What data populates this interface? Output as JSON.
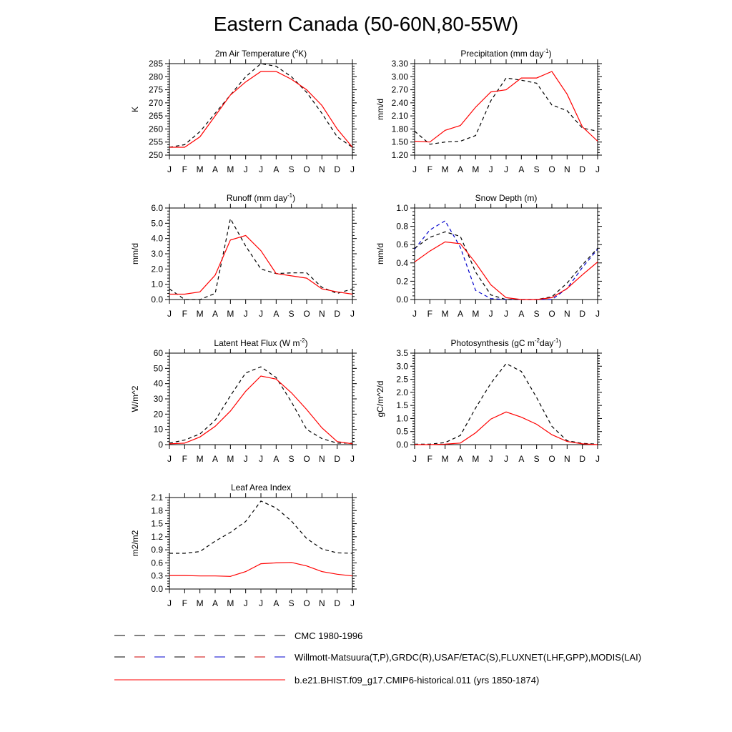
{
  "title": "Eastern Canada (50-60N,80-55W)",
  "months": [
    "J",
    "F",
    "M",
    "A",
    "M",
    "J",
    "J",
    "A",
    "S",
    "O",
    "N",
    "D",
    "J"
  ],
  "legend": [
    {
      "label": "CMC 1980-1996",
      "style": "dash",
      "colors": [
        "#000000"
      ]
    },
    {
      "label": "Willmott-Matsuura(T,P),GRDC(R),USAF/ETAC(S),FLUXNET(LHF,GPP),MODIS(LAI)",
      "style": "dash",
      "colors": [
        "#000000",
        "#cc0000",
        "#0000cc"
      ]
    },
    {
      "label": "b.e21.BHIST.f09_g17.CMIP6-historical.011 (yrs 1850-1874)",
      "style": "solid",
      "colors": [
        "#ff0000"
      ]
    }
  ],
  "chart_data": [
    {
      "type": "line",
      "title": "2m Air Temperature (°K)",
      "title_parts": [
        [
          "2m Air Temperature (",
          "n"
        ],
        [
          "o",
          "sup"
        ],
        [
          "K)",
          "n"
        ]
      ],
      "ylabel": "K",
      "ylim": [
        250,
        285
      ],
      "yticks": [
        250,
        255,
        260,
        265,
        270,
        275,
        280,
        285
      ],
      "ytick_labels": [
        "250",
        "255",
        "260",
        "265",
        "270",
        "275",
        "280",
        "285"
      ],
      "grid": false,
      "series": [
        {
          "color": "#000000",
          "dash": true,
          "values": [
            253,
            254,
            259,
            266,
            273,
            280,
            285,
            284,
            280,
            274,
            266,
            257,
            253
          ]
        },
        {
          "color": "#ff0000",
          "dash": false,
          "values": [
            253,
            253,
            257,
            265,
            273,
            278,
            282,
            282,
            279,
            275,
            269,
            260,
            253
          ]
        }
      ]
    },
    {
      "type": "line",
      "title": "Precipitation (mm day-1)",
      "title_parts": [
        [
          "Precipitation (mm day",
          "n"
        ],
        [
          "-1",
          "sup"
        ],
        [
          ")",
          "n"
        ]
      ],
      "ylabel": "mm/d",
      "ylim": [
        1.2,
        3.3
      ],
      "yticks": [
        1.2,
        1.5,
        1.8,
        2.1,
        2.4,
        2.7,
        3.0,
        3.3
      ],
      "ytick_labels": [
        "1.20",
        "1.50",
        "1.80",
        "2.10",
        "2.40",
        "2.70",
        "3.00",
        "3.30"
      ],
      "grid": false,
      "series": [
        {
          "color": "#000000",
          "dash": true,
          "values": [
            1.75,
            1.45,
            1.5,
            1.52,
            1.65,
            2.45,
            2.97,
            2.92,
            2.85,
            2.35,
            2.22,
            1.82,
            1.75
          ]
        },
        {
          "color": "#ff0000",
          "dash": false,
          "values": [
            1.52,
            1.5,
            1.77,
            1.88,
            2.3,
            2.65,
            2.7,
            2.97,
            2.97,
            3.12,
            2.6,
            1.85,
            1.52
          ]
        }
      ]
    },
    {
      "type": "line",
      "title": "Runoff (mm day-1)",
      "title_parts": [
        [
          "Runoff (mm day",
          "n"
        ],
        [
          "-1",
          "sup"
        ],
        [
          ")",
          "n"
        ]
      ],
      "ylabel": "mm/d",
      "ylim": [
        0,
        6
      ],
      "yticks": [
        0,
        1,
        2,
        3,
        4,
        5,
        6
      ],
      "ytick_labels": [
        "0.0",
        "1.0",
        "2.0",
        "3.0",
        "4.0",
        "5.0",
        "6.0"
      ],
      "grid": false,
      "series": [
        {
          "color": "#000000",
          "dash": true,
          "values": [
            0.7,
            0.0,
            0.0,
            0.4,
            5.3,
            3.5,
            2.0,
            1.7,
            1.75,
            1.75,
            0.8,
            0.4,
            0.7
          ]
        },
        {
          "color": "#ff0000",
          "dash": false,
          "values": [
            0.35,
            0.35,
            0.5,
            1.6,
            3.9,
            4.2,
            3.2,
            1.7,
            1.55,
            1.4,
            0.7,
            0.5,
            0.35
          ]
        }
      ]
    },
    {
      "type": "line",
      "title": "Snow Depth (m)",
      "title_parts": [
        [
          "Snow Depth (m)",
          "n"
        ]
      ],
      "ylabel": "mm/d",
      "ylim": [
        0,
        1
      ],
      "yticks": [
        0,
        0.2,
        0.4,
        0.6,
        0.8,
        1.0
      ],
      "ytick_labels": [
        "0.0",
        "0.2",
        "0.4",
        "0.6",
        "0.8",
        "1.0"
      ],
      "grid": false,
      "series": [
        {
          "color": "#0000cc",
          "dash": true,
          "values": [
            0.55,
            0.76,
            0.86,
            0.57,
            0.1,
            0.01,
            0.0,
            0.0,
            0.0,
            0.0,
            0.12,
            0.35,
            0.55
          ]
        },
        {
          "color": "#000000",
          "dash": true,
          "values": [
            0.56,
            0.68,
            0.74,
            0.69,
            0.3,
            0.05,
            0.0,
            0.0,
            0.0,
            0.03,
            0.18,
            0.38,
            0.56
          ]
        },
        {
          "color": "#ff0000",
          "dash": false,
          "values": [
            0.41,
            0.53,
            0.63,
            0.61,
            0.4,
            0.16,
            0.02,
            0.0,
            0.0,
            0.02,
            0.12,
            0.27,
            0.41
          ]
        }
      ]
    },
    {
      "type": "line",
      "title": "Latent Heat Flux (W m-2)",
      "title_parts": [
        [
          "Latent Heat Flux (W m",
          "n"
        ],
        [
          "-2",
          "sup"
        ],
        [
          ")",
          "n"
        ]
      ],
      "ylabel": "W/m^2",
      "ylim": [
        0,
        60
      ],
      "yticks": [
        0,
        10,
        20,
        30,
        40,
        50,
        60
      ],
      "ytick_labels": [
        "0",
        "10",
        "20",
        "30",
        "40",
        "50",
        "60"
      ],
      "grid": false,
      "series": [
        {
          "color": "#000000",
          "dash": true,
          "values": [
            1,
            3,
            7,
            16,
            32,
            47,
            51,
            44,
            28,
            10,
            4,
            1,
            1
          ]
        },
        {
          "color": "#ff0000",
          "dash": false,
          "values": [
            0.5,
            1,
            5,
            12,
            22,
            35,
            45,
            43,
            34,
            23,
            11,
            2,
            0.5
          ]
        }
      ]
    },
    {
      "type": "line",
      "title": "Photosynthesis (gC m-2day-1)",
      "title_parts": [
        [
          "Photosynthesis (gC m",
          "n"
        ],
        [
          "-2",
          "sup"
        ],
        [
          "day",
          "n"
        ],
        [
          "-1",
          "sup"
        ],
        [
          ")",
          "n"
        ]
      ],
      "ylabel": "gC/m^2/d",
      "ylim": [
        0,
        3.5
      ],
      "yticks": [
        0,
        0.5,
        1.0,
        1.5,
        2.0,
        2.5,
        3.0,
        3.5
      ],
      "ytick_labels": [
        "0.0",
        "0.5",
        "1.0",
        "1.5",
        "2.0",
        "2.5",
        "3.0",
        "3.5"
      ],
      "grid": false,
      "series": [
        {
          "color": "#000000",
          "dash": true,
          "values": [
            0.02,
            0.02,
            0.08,
            0.35,
            1.4,
            2.35,
            3.1,
            2.8,
            1.8,
            0.7,
            0.15,
            0.05,
            0.02
          ]
        },
        {
          "color": "#ff0000",
          "dash": false,
          "values": [
            0.0,
            0.0,
            0.02,
            0.06,
            0.45,
            0.98,
            1.25,
            1.05,
            0.78,
            0.38,
            0.12,
            0.03,
            0.0
          ]
        }
      ]
    },
    {
      "type": "line",
      "title": "Leaf Area Index",
      "title_parts": [
        [
          "Leaf Area Index",
          "n"
        ]
      ],
      "ylabel": "m2/m2",
      "ylim": [
        0,
        2.1
      ],
      "yticks": [
        0,
        0.3,
        0.6,
        0.9,
        1.2,
        1.5,
        1.8,
        2.1
      ],
      "ytick_labels": [
        "0.0",
        "0.3",
        "0.6",
        "0.9",
        "1.2",
        "1.5",
        "1.8",
        "2.1"
      ],
      "grid": false,
      "series": [
        {
          "color": "#000000",
          "dash": true,
          "values": [
            0.82,
            0.82,
            0.86,
            1.1,
            1.3,
            1.55,
            2.02,
            1.86,
            1.56,
            1.16,
            0.92,
            0.83,
            0.82
          ]
        },
        {
          "color": "#ff0000",
          "dash": false,
          "values": [
            0.31,
            0.31,
            0.3,
            0.3,
            0.29,
            0.4,
            0.58,
            0.6,
            0.61,
            0.53,
            0.4,
            0.34,
            0.3
          ]
        }
      ]
    }
  ]
}
